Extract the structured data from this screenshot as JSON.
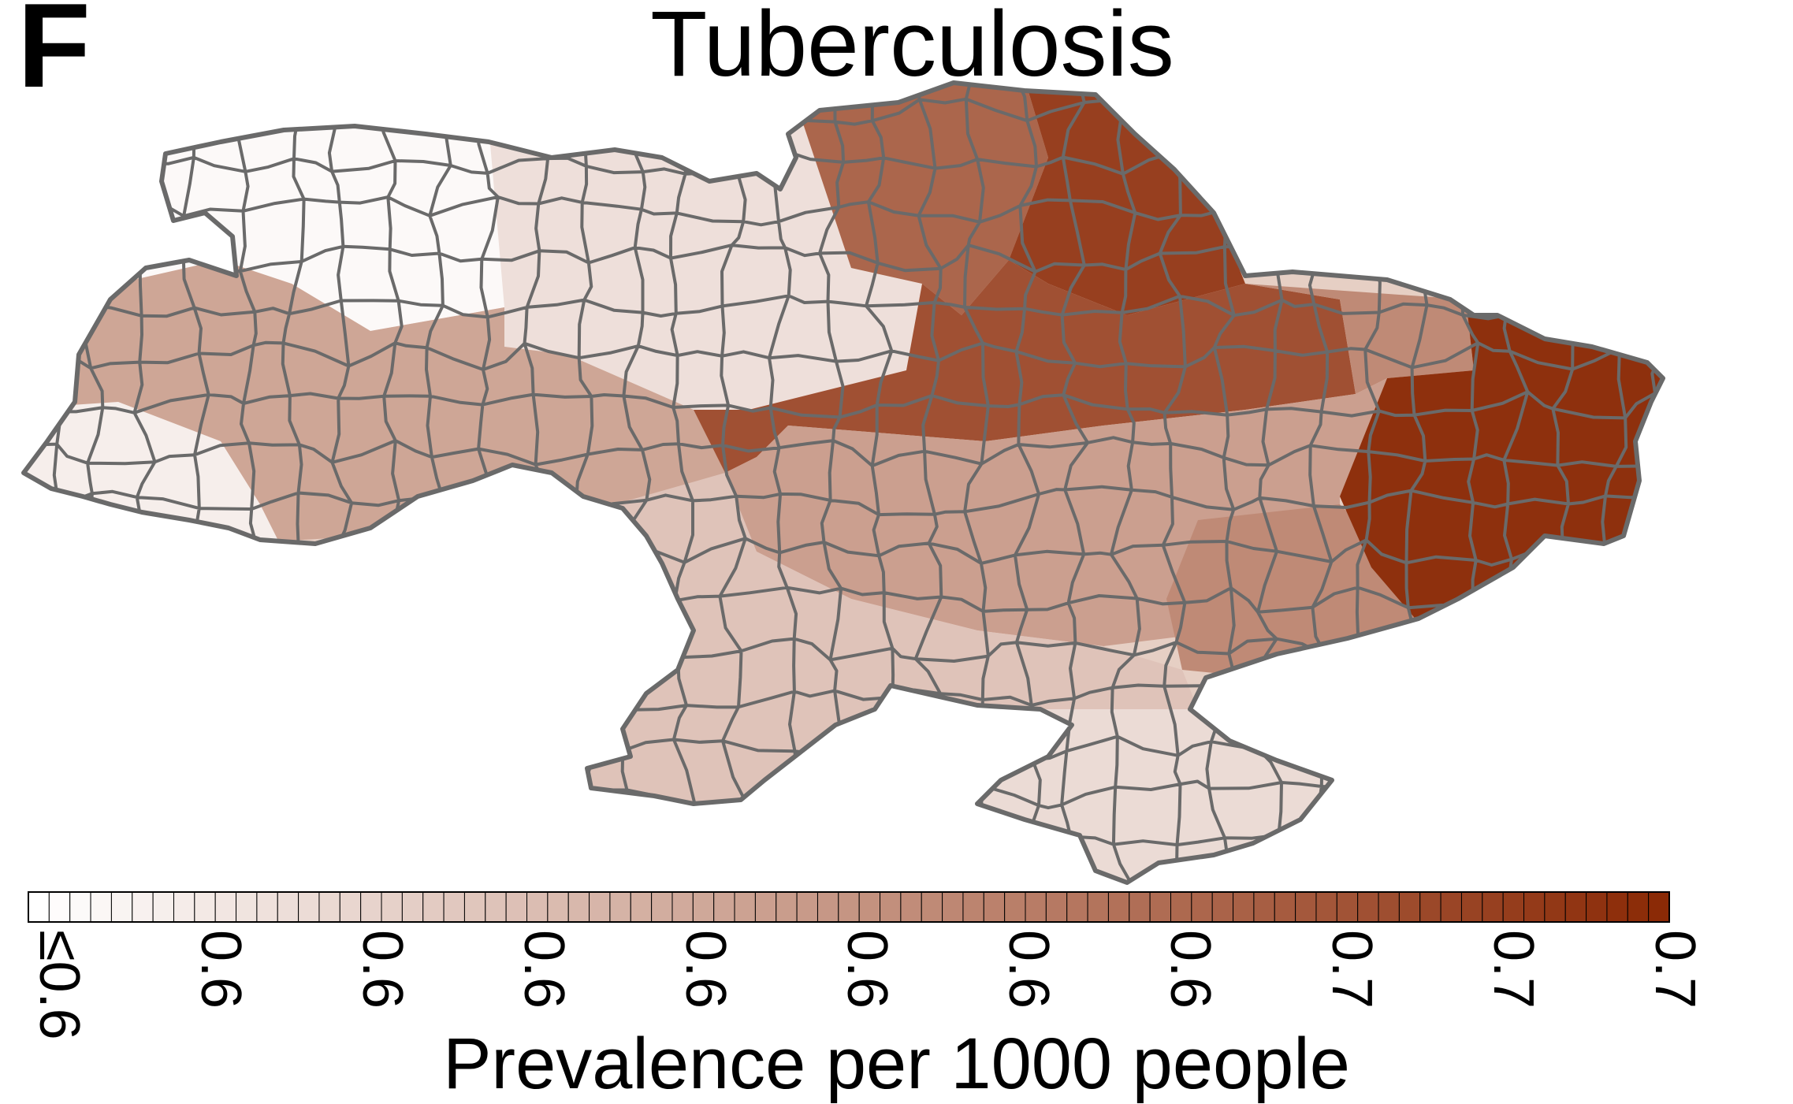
{
  "panel_label": "F",
  "title": "Tuberculosis",
  "legend": {
    "title": "Prevalence per 1000 people",
    "tick_labels": [
      "≤0.6",
      "0.6",
      "0.6",
      "0.6",
      "0.6",
      "0.6",
      "0.6",
      "0.6",
      "0.7",
      "0.7",
      "0.7"
    ],
    "bins": 79,
    "color_low": "#ffffff",
    "color_high": "#8b2a06",
    "border_color": "#6a6a6a"
  },
  "map": {
    "region": "Ukraine",
    "border_color": "#6a6a6a",
    "zone_levels": {
      "west_north": 0.03,
      "north_central": 0.15,
      "west_carpathian_low": 0.08,
      "west_band": 0.42,
      "north_east": 0.72,
      "far_north_east": 0.9,
      "central_band": 0.82,
      "central_south": 0.45,
      "south": 0.28,
      "east_mid": 0.55,
      "donbas": 0.97,
      "crimea": 0.17
    }
  }
}
